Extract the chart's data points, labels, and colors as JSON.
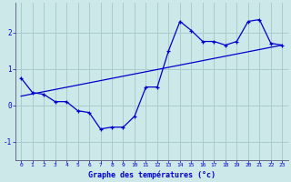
{
  "xlabel": "Graphe des températures (°c)",
  "background_color": "#cce8e8",
  "grid_color": "#aacccc",
  "line_color": "#0000cc",
  "xlim": [
    -0.5,
    23.5
  ],
  "ylim": [
    -1.5,
    2.8
  ],
  "yticks": [
    -1,
    0,
    1,
    2
  ],
  "xticks": [
    0,
    1,
    2,
    3,
    4,
    5,
    6,
    7,
    8,
    9,
    10,
    11,
    12,
    13,
    14,
    15,
    16,
    17,
    18,
    19,
    20,
    21,
    22,
    23
  ],
  "temp_x": [
    0,
    1,
    2,
    3,
    4,
    5,
    6,
    7,
    8,
    9,
    10,
    11,
    12,
    13,
    14,
    15,
    16,
    17,
    18,
    19,
    20,
    21,
    22,
    23
  ],
  "temp_y": [
    0.75,
    0.35,
    0.3,
    0.1,
    0.1,
    -0.15,
    -0.2,
    -0.65,
    -0.6,
    -0.6,
    -0.3,
    0.5,
    0.5,
    1.5,
    2.3,
    2.05,
    1.75,
    1.75,
    1.65,
    1.75,
    2.3,
    2.35,
    1.7,
    1.65
  ],
  "trend_x": [
    0,
    23
  ],
  "trend_y": [
    0.25,
    1.65
  ]
}
